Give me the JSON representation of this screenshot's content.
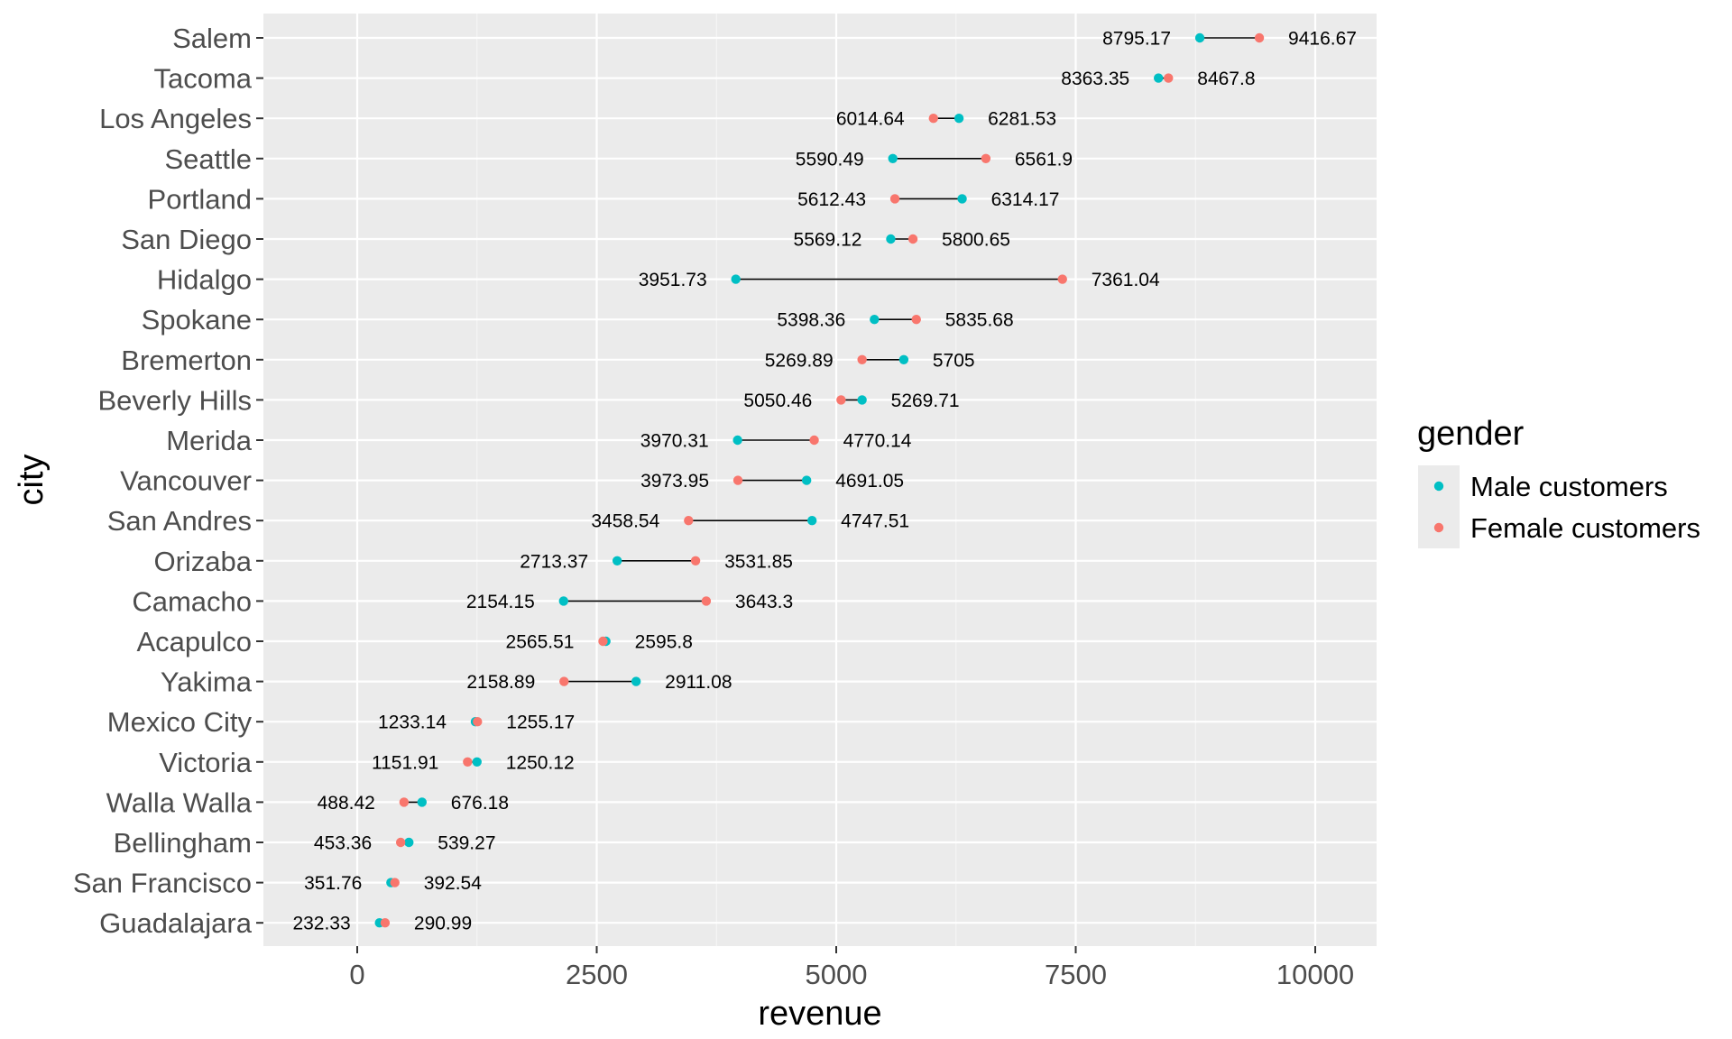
{
  "chart_data": {
    "type": "dumbbell",
    "xlabel": "revenue",
    "ylabel": "city",
    "xlim": [
      -1000,
      10650
    ],
    "x_ticks": [
      "0",
      "2500",
      "5000",
      "7500",
      "10000"
    ],
    "x_tick_values": [
      0,
      2500,
      5000,
      7500,
      10000
    ],
    "grid": true,
    "legend": {
      "title": "gender",
      "placement": "right",
      "entries": [
        {
          "label": "Male customers",
          "color": "#00BFC4"
        },
        {
          "label": "Female customers",
          "color": "#F8766D"
        }
      ]
    },
    "categories": [
      "Salem",
      "Tacoma",
      "Los Angeles",
      "Seattle",
      "Portland",
      "San Diego",
      "Hidalgo",
      "Spokane",
      "Bremerton",
      "Beverly Hills",
      "Merida",
      "Vancouver",
      "San Andres",
      "Orizaba",
      "Camacho",
      "Acapulco",
      "Yakima",
      "Mexico City",
      "Victoria",
      "Walla Walla",
      "Bellingham",
      "San Francisco",
      "Guadalajara"
    ],
    "series": [
      {
        "name": "Male customers",
        "color": "#00BFC4",
        "values": [
          8795.17,
          8363.35,
          6281.53,
          5590.49,
          6314.17,
          5569.12,
          3951.73,
          5398.36,
          5705,
          5269.71,
          3970.31,
          4691.05,
          4747.51,
          2713.37,
          2154.15,
          2595.8,
          2911.08,
          1233.14,
          1250.12,
          676.18,
          539.27,
          351.76,
          232.33
        ]
      },
      {
        "name": "Female customers",
        "color": "#F8766D",
        "values": [
          9416.67,
          8467.8,
          6014.64,
          6561.9,
          5612.43,
          5800.65,
          7361.04,
          5835.68,
          5269.89,
          5050.46,
          4770.14,
          3973.95,
          3458.54,
          3531.85,
          3643.3,
          2565.51,
          2158.89,
          1255.17,
          1151.91,
          488.42,
          453.36,
          392.54,
          290.99
        ]
      }
    ],
    "labels_left": [
      "8795.17",
      "8363.35",
      "6014.64",
      "5590.49",
      "5612.43",
      "5569.12",
      "3951.73",
      "5398.36",
      "5269.89",
      "5050.46",
      "3970.31",
      "3973.95",
      "3458.54",
      "2713.37",
      "2154.15",
      "2565.51",
      "2158.89",
      "1233.14",
      "1151.91",
      "488.42",
      "453.36",
      "351.76",
      "232.33"
    ],
    "labels_right": [
      "9416.67",
      "8467.8",
      "6281.53",
      "6561.9",
      "6314.17",
      "5800.65",
      "7361.04",
      "5835.68",
      "5705",
      "5269.71",
      "4770.14",
      "4691.05",
      "4747.51",
      "3531.85",
      "3643.3",
      "2595.8",
      "2911.08",
      "1255.17",
      "1250.12",
      "676.18",
      "539.27",
      "392.54",
      "290.99"
    ],
    "colors": {
      "panel": "#EBEBEB",
      "grid_major": "#FFFFFF",
      "tick": "#333333"
    }
  }
}
